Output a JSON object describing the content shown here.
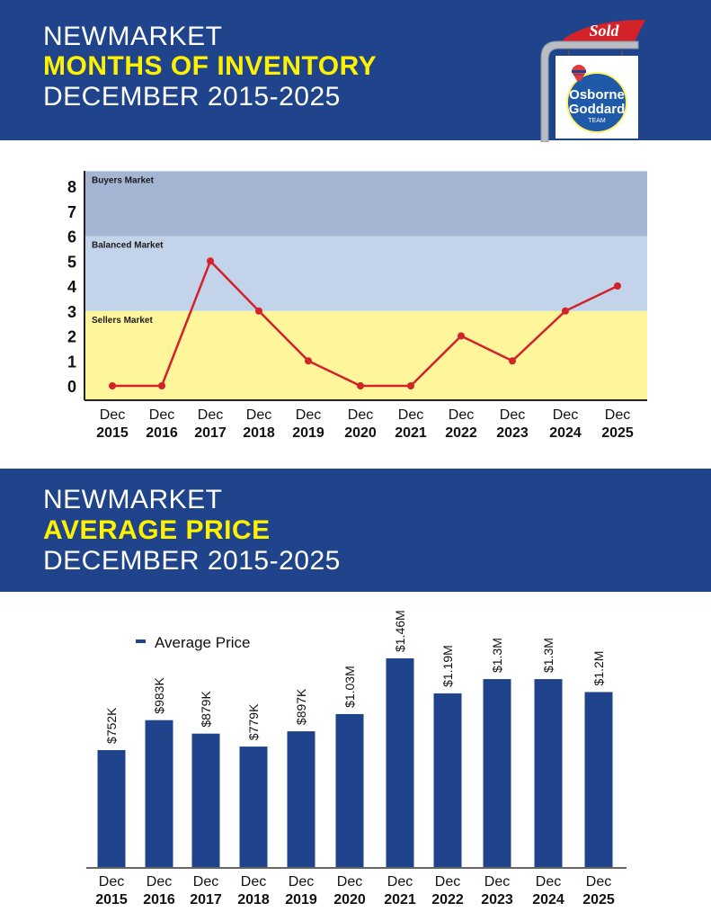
{
  "header1": {
    "line1": "NEWMARKET",
    "line2": "MONTHS OF INVENTORY",
    "line3": "DECEMBER 2015-2025"
  },
  "logo": {
    "sold_label": "Sold",
    "brand_small": "RE/MAX",
    "name_line1": "Osborne",
    "name_line2": "Goddard",
    "name_line3": "TEAM"
  },
  "header2": {
    "line1": "NEWMARKET",
    "line2": "AVERAGE PRICE",
    "line3": "DECEMBER 2015-2025"
  },
  "colors": {
    "navy": "#1f448c",
    "yellow": "#fff200",
    "line_red": "#d3222a",
    "buyers_band": "#a4b6d4",
    "balanced_band": "#c3d3ea",
    "sellers_band": "#fff59a",
    "bar_blue": "#1f448c"
  },
  "chart_data": [
    {
      "type": "line",
      "title": "Months of Inventory",
      "x_top": [
        "Dec",
        "Dec",
        "Dec",
        "Dec",
        "Dec",
        "Dec",
        "Dec",
        "Dec",
        "Dec",
        "Dec",
        "Dec"
      ],
      "categories": [
        "2015",
        "2016",
        "2017",
        "2018",
        "2019",
        "2020",
        "2021",
        "2022",
        "2023",
        "2024",
        "2025"
      ],
      "values": [
        0,
        0,
        5,
        3,
        1,
        0,
        0,
        2,
        1,
        3,
        4
      ],
      "yticks": [
        "0",
        "1",
        "2",
        "3",
        "4",
        "5",
        "6",
        "7",
        "8"
      ],
      "ylim": [
        0,
        8.6
      ],
      "bands": [
        {
          "label": "Sellers Market",
          "from": 0,
          "to": 3
        },
        {
          "label": "Balanced Market",
          "from": 3,
          "to": 6
        },
        {
          "label": "Buyers Market",
          "from": 6,
          "to": 8.6
        }
      ],
      "grid": false,
      "legend": "none"
    },
    {
      "type": "bar",
      "title": "Average Price",
      "legend": {
        "label": "Average Price",
        "position": "top-left"
      },
      "x_top": [
        "Dec",
        "Dec",
        "Dec",
        "Dec",
        "Dec",
        "Dec",
        "Dec",
        "Dec",
        "Dec",
        "Dec",
        "Dec"
      ],
      "categories": [
        "2015",
        "2016",
        "2017",
        "2018",
        "2019",
        "2020",
        "2021",
        "2022",
        "2023",
        "2024",
        "2025"
      ],
      "values": [
        752000,
        983000,
        879000,
        779000,
        897000,
        1030000,
        1460000,
        1190000,
        1300000,
        1300000,
        1200000
      ],
      "data_labels": [
        "$752K",
        "$983K",
        "$879K",
        "$779K",
        "$897K",
        "$1.03M",
        "$1.46M",
        "$1.19M",
        "$1.3M",
        "$1.3M",
        "$1.2M"
      ],
      "grid": false
    }
  ]
}
